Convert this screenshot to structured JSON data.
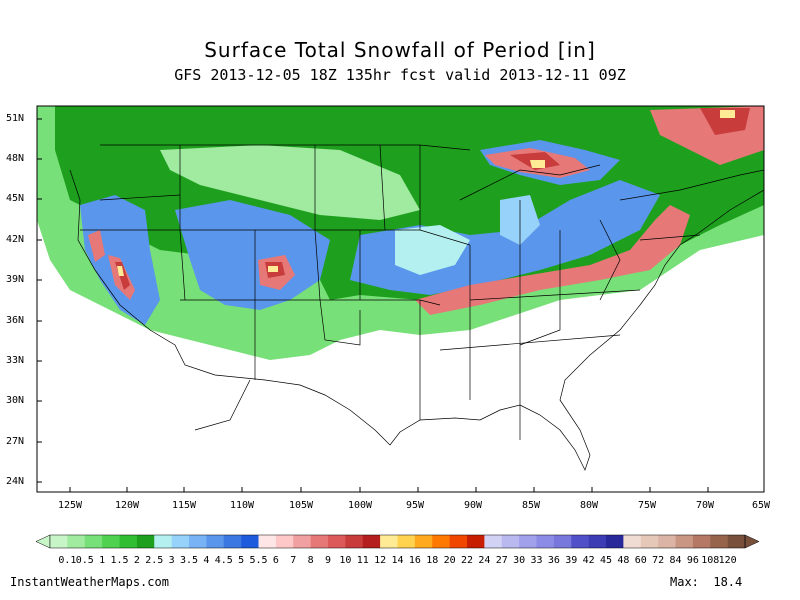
{
  "title": "Surface Total Snowfall of Period [in]",
  "subtitle": "GFS 2013-12-05 18Z 135hr fcst valid 2013-12-11 09Z",
  "lat_labels": [
    "51N",
    "48N",
    "45N",
    "42N",
    "39N",
    "36N",
    "33N",
    "30N",
    "27N",
    "24N"
  ],
  "lon_labels": [
    "125W",
    "120W",
    "115W",
    "110W",
    "105W",
    "100W",
    "95W",
    "90W",
    "85W",
    "80W",
    "75W",
    "70W",
    "65W"
  ],
  "colorbar": {
    "labels": [
      "0.1",
      "0.5",
      "1",
      "1.5",
      "2",
      "2.5",
      "3",
      "3.5",
      "4",
      "4.5",
      "5",
      "5.5",
      "6",
      "7",
      "8",
      "9",
      "10",
      "11",
      "12",
      "14",
      "16",
      "18",
      "20",
      "22",
      "24",
      "27",
      "30",
      "33",
      "36",
      "39",
      "42",
      "45",
      "48",
      "60",
      "72",
      "84",
      "96",
      "108",
      "120"
    ],
    "colors": [
      "#c8f5c8",
      "#a0eba0",
      "#78e078",
      "#50d250",
      "#32be32",
      "#1ea01e",
      "#b4f0f0",
      "#96d2fa",
      "#78b4f5",
      "#5a96eb",
      "#3c78e1",
      "#1e5adc",
      "#ffe6e6",
      "#ffc8c8",
      "#f0a0a0",
      "#e67878",
      "#dc5a5a",
      "#c83c3c",
      "#b41e1e",
      "#ffeb96",
      "#ffd250",
      "#ffaa1e",
      "#ff7800",
      "#f04600",
      "#c81e00",
      "#d2d2f5",
      "#b9b9f0",
      "#a0a0eb",
      "#8c8ce6",
      "#7878dc",
      "#5050c8",
      "#3c3cb4",
      "#28289b",
      "#f0dcd2",
      "#e6c8b9",
      "#dcb4a5",
      "#c89682",
      "#b47864",
      "#96644b",
      "#78503c"
    ]
  },
  "footer": {
    "site": "InstantWeatherMaps.com",
    "max_label": "Max:",
    "max_value": "18.4"
  },
  "colors": {
    "green": "#1ea01e",
    "light_green": "#78e078",
    "blue": "#5a96eb",
    "pink": "#e67878",
    "red": "#c83c3c",
    "yellow": "#ffeb96",
    "light_blue": "#b4f0f0"
  }
}
